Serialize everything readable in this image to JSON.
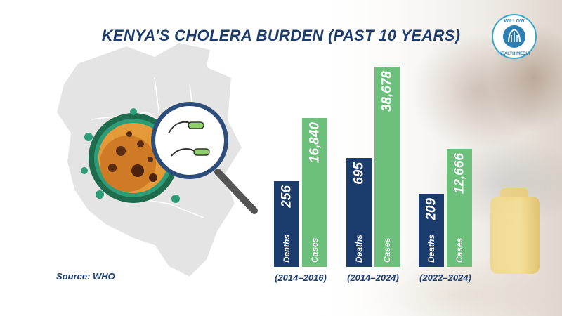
{
  "title": "KENYA’S CHOLERA BURDEN (PAST 10 YEARS)",
  "source": "Source: WHO",
  "logo": {
    "text_top": "WILLOW",
    "text_bottom": "HEALTH MEDIA"
  },
  "colors": {
    "deaths": "#1d3c6e",
    "cases": "#6cc07c",
    "title": "#1d3c6e"
  },
  "chart_data": {
    "type": "bar",
    "title": "KENYA’S CHOLERA BURDEN (PAST 10 YEARS)",
    "categories": [
      "(2014–2016)",
      "(2014–2024)",
      "(2022–2024)"
    ],
    "series": [
      {
        "name": "Deaths",
        "values": [
          256,
          695,
          209
        ],
        "labels": [
          "256",
          "695",
          "209"
        ]
      },
      {
        "name": "Cases",
        "values": [
          16840,
          38678,
          12666
        ],
        "labels": [
          "16,840",
          "38,678",
          "12,666"
        ]
      }
    ],
    "xlabel": "",
    "ylabel": "",
    "legend": "none"
  }
}
